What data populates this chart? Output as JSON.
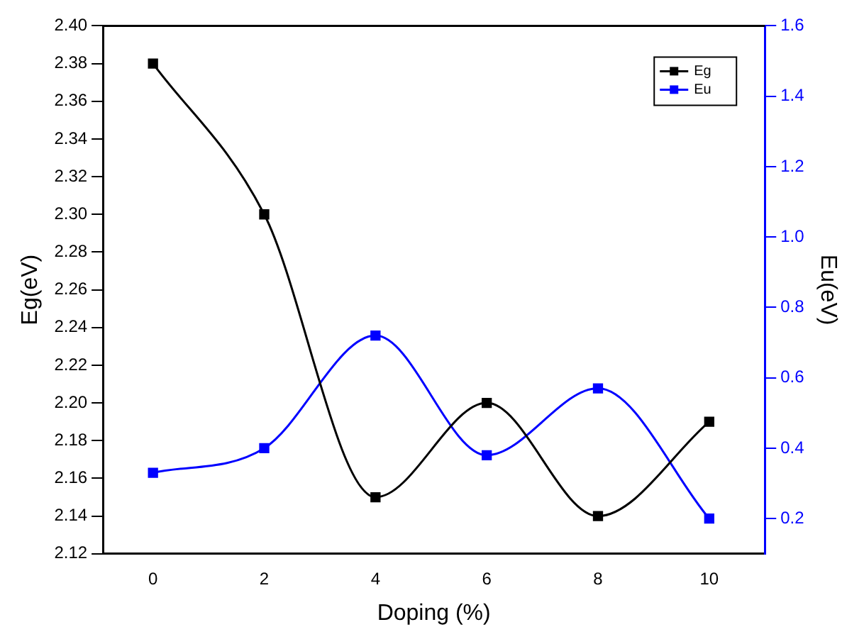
{
  "chart_data": {
    "type": "line",
    "xlabel": "Doping (%)",
    "ylabel": "Eg(eV)",
    "y2label": "Eu(eV)",
    "x": [
      0,
      2,
      4,
      6,
      8,
      10
    ],
    "series": [
      {
        "name": "Eg",
        "color": "#000000",
        "values": [
          2.38,
          2.3,
          2.15,
          2.2,
          2.14,
          2.19
        ]
      },
      {
        "name": "Eu",
        "color": "#0000ff",
        "axis": "y2",
        "values": [
          0.33,
          0.4,
          0.72,
          0.38,
          0.57,
          0.2
        ]
      }
    ],
    "xlim": [
      -0.9,
      11
    ],
    "xticks": [
      0,
      2,
      4,
      6,
      8,
      10
    ],
    "ylim": [
      2.12,
      2.4
    ],
    "yticks": [
      {
        "value": 2.12,
        "label": "2.12"
      },
      {
        "value": 2.14,
        "label": "2.14"
      },
      {
        "value": 2.16,
        "label": "2.16"
      },
      {
        "value": 2.18,
        "label": "2.18"
      },
      {
        "value": 2.2,
        "label": "2.20"
      },
      {
        "value": 2.22,
        "label": "2.22"
      },
      {
        "value": 2.24,
        "label": "2.24"
      },
      {
        "value": 2.26,
        "label": "2.26"
      },
      {
        "value": 2.28,
        "label": "2.28"
      },
      {
        "value": 2.3,
        "label": "2.30"
      },
      {
        "value": 2.32,
        "label": "2.32"
      },
      {
        "value": 2.34,
        "label": "2.34"
      },
      {
        "value": 2.36,
        "label": "2.36"
      },
      {
        "value": 2.38,
        "label": "2.38"
      },
      {
        "value": 2.4,
        "label": "2.40"
      }
    ],
    "y2lim": [
      0.1,
      1.6
    ],
    "y2ticks": [
      0.2,
      0.4,
      0.6,
      0.8,
      {
        "value": 1.0,
        "label": "1.0"
      },
      1.2,
      1.4,
      1.6
    ],
    "legend": "top right",
    "marker": "square",
    "grid": false
  }
}
